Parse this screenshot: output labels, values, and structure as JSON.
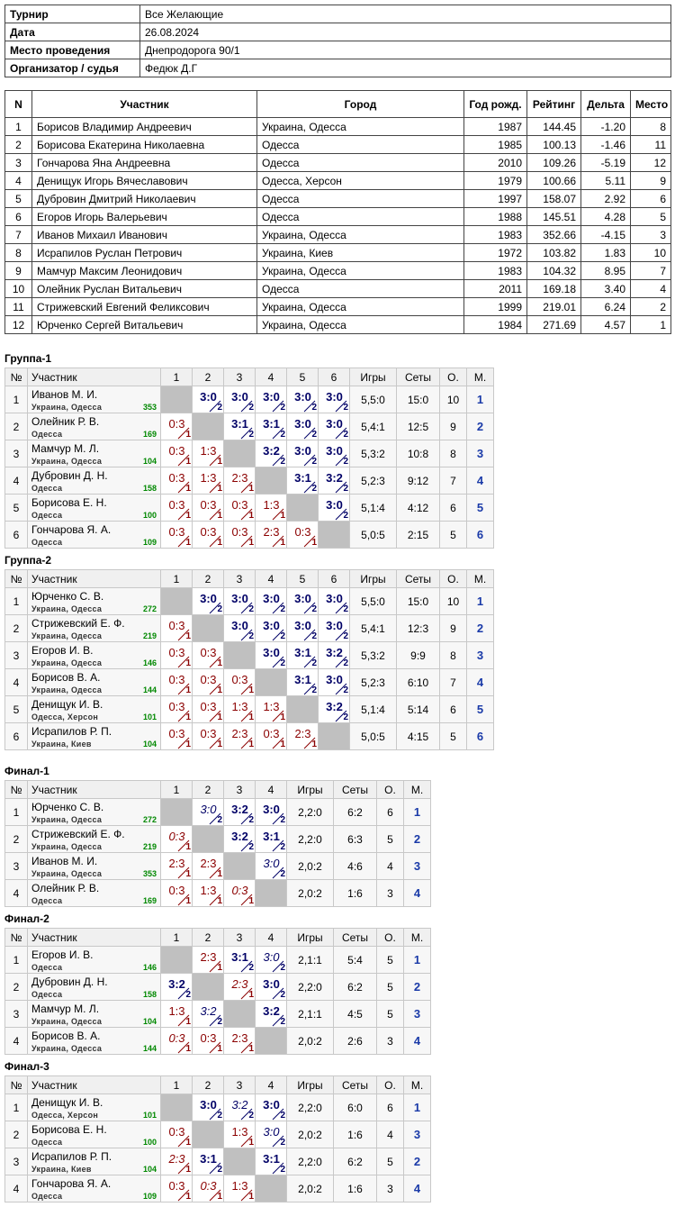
{
  "info": {
    "rows": [
      [
        "Турнир",
        "Все Желающие"
      ],
      [
        "Дата",
        "26.08.2024"
      ],
      [
        "Место проведения",
        "Днепродорога 90/1"
      ],
      [
        "Организатор / судья",
        "Федюк Д.Г"
      ]
    ]
  },
  "participants": {
    "headers": [
      "N",
      "Участник",
      "Город",
      "Год рожд.",
      "Рейтинг",
      "Дельта",
      "Место"
    ],
    "rows": [
      [
        "1",
        "Борисов Владимир Андреевич",
        "Украина, Одесса",
        "1987",
        "144.45",
        "-1.20",
        "8"
      ],
      [
        "2",
        "Борисова Екатерина Николаевна",
        "Одесса",
        "1985",
        "100.13",
        "-1.46",
        "11"
      ],
      [
        "3",
        "Гончарова Яна Андреевна",
        "Одесса",
        "2010",
        "109.26",
        "-5.19",
        "12"
      ],
      [
        "4",
        "Денищук Игорь Вячеславович",
        "Одесса, Херсон",
        "1979",
        "100.66",
        "5.11",
        "9"
      ],
      [
        "5",
        "Дубровин Дмитрий Николаевич",
        "Одесса",
        "1997",
        "158.07",
        "2.92",
        "6"
      ],
      [
        "6",
        "Егоров Игорь Валерьевич",
        "Одесса",
        "1988",
        "145.51",
        "4.28",
        "5"
      ],
      [
        "7",
        "Иванов Михаил Иванович",
        "Украина, Одесса",
        "1983",
        "352.66",
        "-4.15",
        "3"
      ],
      [
        "8",
        "Исрапилов Руслан Петрович",
        "Украина, Киев",
        "1972",
        "103.82",
        "1.83",
        "10"
      ],
      [
        "9",
        "Мамчур Максим Леонидович",
        "Украина, Одесса",
        "1983",
        "104.32",
        "8.95",
        "7"
      ],
      [
        "10",
        "Олейник Руслан Витальевич",
        "Одесса",
        "2011",
        "169.18",
        "3.40",
        "4"
      ],
      [
        "11",
        "Стрижевский Евгений Феликсович",
        "Украина, Одесса",
        "1999",
        "219.01",
        "6.24",
        "2"
      ],
      [
        "12",
        "Юрченко Сергей Витальевич",
        "Украина, Одесса",
        "1984",
        "271.69",
        "4.57",
        "1"
      ]
    ]
  },
  "groups": [
    {
      "title": "Группа-1",
      "headers": [
        "№",
        "Участник",
        "1",
        "2",
        "3",
        "4",
        "5",
        "6",
        "Игры",
        "Сеты",
        "О.",
        "М."
      ],
      "rows": [
        {
          "no": 1,
          "name": "Иванов М. И.",
          "city": "Украина, Одесса",
          "rating": 353,
          "cells": [
            null,
            {
              "score": "3:0",
              "points": 2
            },
            {
              "score": "3:0",
              "points": 2
            },
            {
              "score": "3:0",
              "points": 2
            },
            {
              "score": "3:0",
              "points": 2
            },
            {
              "score": "3:0",
              "points": 2
            }
          ],
          "games": "5,5:0",
          "sets": "15:0",
          "points": 10,
          "place": 1
        },
        {
          "no": 2,
          "name": "Олейник Р. В.",
          "city": "Одесса",
          "rating": 169,
          "cells": [
            {
              "score": "0:3",
              "points": 1
            },
            null,
            {
              "score": "3:1",
              "points": 2
            },
            {
              "score": "3:1",
              "points": 2
            },
            {
              "score": "3:0",
              "points": 2
            },
            {
              "score": "3:0",
              "points": 2
            }
          ],
          "games": "5,4:1",
          "sets": "12:5",
          "points": 9,
          "place": 2
        },
        {
          "no": 3,
          "name": "Мамчур М. Л.",
          "city": "Украина, Одесса",
          "rating": 104,
          "cells": [
            {
              "score": "0:3",
              "points": 1
            },
            {
              "score": "1:3",
              "points": 1
            },
            null,
            {
              "score": "3:2",
              "points": 2
            },
            {
              "score": "3:0",
              "points": 2
            },
            {
              "score": "3:0",
              "points": 2
            }
          ],
          "games": "5,3:2",
          "sets": "10:8",
          "points": 8,
          "place": 3
        },
        {
          "no": 4,
          "name": "Дубровин Д. Н.",
          "city": "Одесса",
          "rating": 158,
          "cells": [
            {
              "score": "0:3",
              "points": 1
            },
            {
              "score": "1:3",
              "points": 1
            },
            {
              "score": "2:3",
              "points": 1
            },
            null,
            {
              "score": "3:1",
              "points": 2
            },
            {
              "score": "3:2",
              "points": 2
            }
          ],
          "games": "5,2:3",
          "sets": "9:12",
          "points": 7,
          "place": 4
        },
        {
          "no": 5,
          "name": "Борисова Е. Н.",
          "city": "Одесса",
          "rating": 100,
          "cells": [
            {
              "score": "0:3",
              "points": 1
            },
            {
              "score": "0:3",
              "points": 1
            },
            {
              "score": "0:3",
              "points": 1
            },
            {
              "score": "1:3",
              "points": 1
            },
            null,
            {
              "score": "3:0",
              "points": 2
            }
          ],
          "games": "5,1:4",
          "sets": "4:12",
          "points": 6,
          "place": 5
        },
        {
          "no": 6,
          "name": "Гончарова Я. А.",
          "city": "Одесса",
          "rating": 109,
          "cells": [
            {
              "score": "0:3",
              "points": 1
            },
            {
              "score": "0:3",
              "points": 1
            },
            {
              "score": "0:3",
              "points": 1
            },
            {
              "score": "2:3",
              "points": 1
            },
            {
              "score": "0:3",
              "points": 1
            },
            null
          ],
          "games": "5,0:5",
          "sets": "2:15",
          "points": 5,
          "place": 6
        }
      ]
    },
    {
      "title": "Группа-2",
      "headers": [
        "№",
        "Участник",
        "1",
        "2",
        "3",
        "4",
        "5",
        "6",
        "Игры",
        "Сеты",
        "О.",
        "М."
      ],
      "rows": [
        {
          "no": 1,
          "name": "Юрченко С. В.",
          "city": "Украина, Одесса",
          "rating": 272,
          "cells": [
            null,
            {
              "score": "3:0",
              "points": 2
            },
            {
              "score": "3:0",
              "points": 2
            },
            {
              "score": "3:0",
              "points": 2
            },
            {
              "score": "3:0",
              "points": 2
            },
            {
              "score": "3:0",
              "points": 2
            }
          ],
          "games": "5,5:0",
          "sets": "15:0",
          "points": 10,
          "place": 1
        },
        {
          "no": 2,
          "name": "Стрижевский Е. Ф.",
          "city": "Украина, Одесса",
          "rating": 219,
          "cells": [
            {
              "score": "0:3",
              "points": 1
            },
            null,
            {
              "score": "3:0",
              "points": 2
            },
            {
              "score": "3:0",
              "points": 2
            },
            {
              "score": "3:0",
              "points": 2
            },
            {
              "score": "3:0",
              "points": 2
            }
          ],
          "games": "5,4:1",
          "sets": "12:3",
          "points": 9,
          "place": 2
        },
        {
          "no": 3,
          "name": "Егоров И. В.",
          "city": "Украина, Одесса",
          "rating": 146,
          "cells": [
            {
              "score": "0:3",
              "points": 1
            },
            {
              "score": "0:3",
              "points": 1
            },
            null,
            {
              "score": "3:0",
              "points": 2
            },
            {
              "score": "3:1",
              "points": 2
            },
            {
              "score": "3:2",
              "points": 2
            }
          ],
          "games": "5,3:2",
          "sets": "9:9",
          "points": 8,
          "place": 3
        },
        {
          "no": 4,
          "name": "Борисов В. А.",
          "city": "Украина, Одесса",
          "rating": 144,
          "cells": [
            {
              "score": "0:3",
              "points": 1
            },
            {
              "score": "0:3",
              "points": 1
            },
            {
              "score": "0:3",
              "points": 1
            },
            null,
            {
              "score": "3:1",
              "points": 2
            },
            {
              "score": "3:0",
              "points": 2
            }
          ],
          "games": "5,2:3",
          "sets": "6:10",
          "points": 7,
          "place": 4
        },
        {
          "no": 5,
          "name": "Денищук И. В.",
          "city": "Одесса, Херсон",
          "rating": 101,
          "cells": [
            {
              "score": "0:3",
              "points": 1
            },
            {
              "score": "0:3",
              "points": 1
            },
            {
              "score": "1:3",
              "points": 1
            },
            {
              "score": "1:3",
              "points": 1
            },
            null,
            {
              "score": "3:2",
              "points": 2
            }
          ],
          "games": "5,1:4",
          "sets": "5:14",
          "points": 6,
          "place": 5
        },
        {
          "no": 6,
          "name": "Исрапилов Р. П.",
          "city": "Украина, Киев",
          "rating": 104,
          "cells": [
            {
              "score": "0:3",
              "points": 1
            },
            {
              "score": "0:3",
              "points": 1
            },
            {
              "score": "2:3",
              "points": 1
            },
            {
              "score": "0:3",
              "points": 1
            },
            {
              "score": "2:3",
              "points": 1
            },
            null
          ],
          "games": "5,0:5",
          "sets": "4:15",
          "points": 5,
          "place": 6
        }
      ]
    },
    {
      "title": "Финал-1",
      "headers": [
        "№",
        "Участник",
        "1",
        "2",
        "3",
        "4",
        "Игры",
        "Сеты",
        "О.",
        "М."
      ],
      "rows": [
        {
          "no": 1,
          "name": "Юрченко С. В.",
          "city": "Украина, Одесса",
          "rating": 272,
          "cells": [
            null,
            {
              "score": "3:0",
              "points": 2,
              "carried": true
            },
            {
              "score": "3:2",
              "points": 2
            },
            {
              "score": "3:0",
              "points": 2
            }
          ],
          "games": "2,2:0",
          "sets": "6:2",
          "points": 6,
          "place": 1
        },
        {
          "no": 2,
          "name": "Стрижевский Е. Ф.",
          "city": "Украина, Одесса",
          "rating": 219,
          "cells": [
            {
              "score": "0:3",
              "points": 1,
              "carried": true
            },
            null,
            {
              "score": "3:2",
              "points": 2
            },
            {
              "score": "3:1",
              "points": 2
            }
          ],
          "games": "2,2:0",
          "sets": "6:3",
          "points": 5,
          "place": 2
        },
        {
          "no": 3,
          "name": "Иванов М. И.",
          "city": "Украина, Одесса",
          "rating": 353,
          "cells": [
            {
              "score": "2:3",
              "points": 1
            },
            {
              "score": "2:3",
              "points": 1
            },
            null,
            {
              "score": "3:0",
              "points": 2,
              "carried": true
            }
          ],
          "games": "2,0:2",
          "sets": "4:6",
          "points": 4,
          "place": 3
        },
        {
          "no": 4,
          "name": "Олейник Р. В.",
          "city": "Одесса",
          "rating": 169,
          "cells": [
            {
              "score": "0:3",
              "points": 1
            },
            {
              "score": "1:3",
              "points": 1
            },
            {
              "score": "0:3",
              "points": 1,
              "carried": true
            },
            null
          ],
          "games": "2,0:2",
          "sets": "1:6",
          "points": 3,
          "place": 4
        }
      ]
    },
    {
      "title": "Финал-2",
      "headers": [
        "№",
        "Участник",
        "1",
        "2",
        "3",
        "4",
        "Игры",
        "Сеты",
        "О.",
        "М."
      ],
      "rows": [
        {
          "no": 1,
          "name": "Егоров И. В.",
          "city": "Одесса",
          "rating": 146,
          "cells": [
            null,
            {
              "score": "2:3",
              "points": 1
            },
            {
              "score": "3:1",
              "points": 2
            },
            {
              "score": "3:0",
              "points": 2,
              "carried": true
            }
          ],
          "games": "2,1:1",
          "sets": "5:4",
          "points": 5,
          "place": 1
        },
        {
          "no": 2,
          "name": "Дубровин Д. Н.",
          "city": "Одесса",
          "rating": 158,
          "cells": [
            {
              "score": "3:2",
              "points": 2
            },
            null,
            {
              "score": "2:3",
              "points": 1,
              "carried": true
            },
            {
              "score": "3:0",
              "points": 2
            }
          ],
          "games": "2,2:0",
          "sets": "6:2",
          "points": 5,
          "place": 2
        },
        {
          "no": 3,
          "name": "Мамчур М. Л.",
          "city": "Украина, Одесса",
          "rating": 104,
          "cells": [
            {
              "score": "1:3",
              "points": 1
            },
            {
              "score": "3:2",
              "points": 2,
              "carried": true
            },
            null,
            {
              "score": "3:2",
              "points": 2
            }
          ],
          "games": "2,1:1",
          "sets": "4:5",
          "points": 5,
          "place": 3
        },
        {
          "no": 4,
          "name": "Борисов В. А.",
          "city": "Украина, Одесса",
          "rating": 144,
          "cells": [
            {
              "score": "0:3",
              "points": 1,
              "carried": true
            },
            {
              "score": "0:3",
              "points": 1
            },
            {
              "score": "2:3",
              "points": 1
            },
            null
          ],
          "games": "2,0:2",
          "sets": "2:6",
          "points": 3,
          "place": 4
        }
      ]
    },
    {
      "title": "Финал-3",
      "headers": [
        "№",
        "Участник",
        "1",
        "2",
        "3",
        "4",
        "Игры",
        "Сеты",
        "О.",
        "М."
      ],
      "rows": [
        {
          "no": 1,
          "name": "Денищук И. В.",
          "city": "Одесса, Херсон",
          "rating": 101,
          "cells": [
            null,
            {
              "score": "3:0",
              "points": 2
            },
            {
              "score": "3:2",
              "points": 2,
              "carried": true
            },
            {
              "score": "3:0",
              "points": 2
            }
          ],
          "games": "2,2:0",
          "sets": "6:0",
          "points": 6,
          "place": 1
        },
        {
          "no": 2,
          "name": "Борисова Е. Н.",
          "city": "Одесса",
          "rating": 100,
          "cells": [
            {
              "score": "0:3",
              "points": 1
            },
            null,
            {
              "score": "1:3",
              "points": 1
            },
            {
              "score": "3:0",
              "points": 2,
              "carried": true
            }
          ],
          "games": "2,0:2",
          "sets": "1:6",
          "points": 4,
          "place": 3
        },
        {
          "no": 3,
          "name": "Исрапилов Р. П.",
          "city": "Украина, Киев",
          "rating": 104,
          "cells": [
            {
              "score": "2:3",
              "points": 1,
              "carried": true
            },
            {
              "score": "3:1",
              "points": 2
            },
            null,
            {
              "score": "3:1",
              "points": 2
            }
          ],
          "games": "2,2:0",
          "sets": "6:2",
          "points": 5,
          "place": 2
        },
        {
          "no": 4,
          "name": "Гончарова Я. А.",
          "city": "Одесса",
          "rating": 109,
          "cells": [
            {
              "score": "0:3",
              "points": 1
            },
            {
              "score": "0:3",
              "points": 1,
              "carried": true
            },
            {
              "score": "1:3",
              "points": 1
            },
            null
          ],
          "games": "2,0:2",
          "sets": "1:6",
          "points": 3,
          "place": 4
        }
      ]
    }
  ]
}
